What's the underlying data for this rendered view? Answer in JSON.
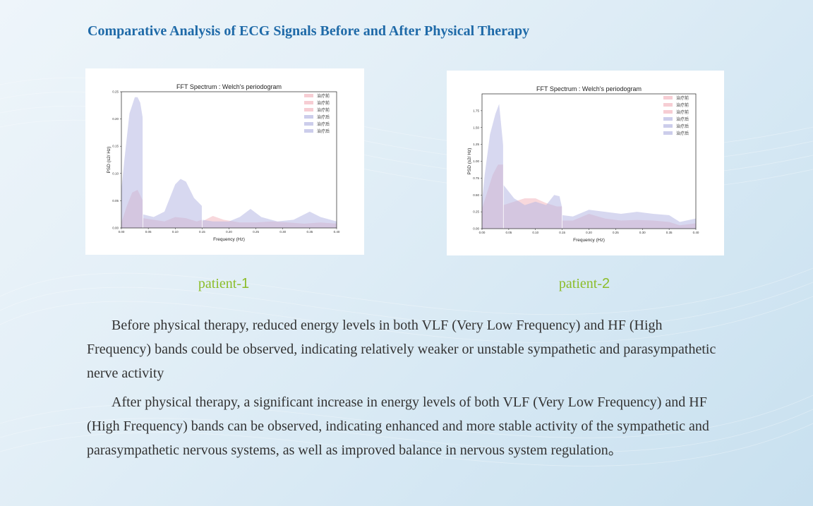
{
  "page_title": "Comparative Analysis of ECG Signals Before and After Physical Therapy",
  "colors": {
    "before": "#f2b8c0",
    "after": "#b7b8e3",
    "label_green": "#8cbd2a",
    "title_blue": "#1f6aa8"
  },
  "patients": [
    {
      "label_prefix": "patient-",
      "label_num": "1"
    },
    {
      "label_prefix": "patient-",
      "label_num": "2"
    }
  ],
  "paragraphs": [
    "Before physical therapy, reduced energy levels in both VLF (Very Low Frequency) and HF (High Frequency) bands could be observed, indicating relatively weaker or unstable sympathetic and parasympathetic nerve activity",
    "After physical therapy, a significant increase in energy levels of both VLF (Very Low Frequency) and HF (High Frequency) bands can be observed, indicating enhanced and more stable activity of the sympathetic and parasympathetic nervous systems, as well as improved balance in nervous system regulation。"
  ],
  "chart_data": [
    {
      "type": "area",
      "title": "FFT Spectrum : Welch's periodogram",
      "xlabel": "Frequency (Hz)",
      "ylabel": "PSD (s2/ Hz)",
      "xlim": [
        0,
        0.4
      ],
      "ylim": [
        0,
        0.25
      ],
      "xticks": [
        0,
        0.05,
        0.1,
        0.15,
        0.2,
        0.25,
        0.3,
        0.35,
        0.4
      ],
      "xtick_labels": [
        "0.00",
        "0.05",
        "0.10",
        "0.15",
        "0.20",
        "0.25",
        "0.30",
        "0.35",
        "0.40"
      ],
      "yticks": [
        0,
        0.05,
        0.1,
        0.15,
        0.2,
        0.25
      ],
      "ytick_labels": [
        "0.00",
        "0.05",
        "0.10",
        "0.15",
        "0.20",
        "0.25"
      ],
      "grid": false,
      "legend_position": "top-right",
      "legend": [
        "治疗前",
        "治疗前",
        "治疗前",
        "治疗后",
        "治疗后",
        "治疗后"
      ],
      "series": [
        {
          "name": "治疗前",
          "group": "before",
          "x": [
            0,
            0.01,
            0.02,
            0.03,
            0.04,
            0.04
          ],
          "y": [
            0.01,
            0.04,
            0.065,
            0.07,
            0.05,
            0
          ]
        },
        {
          "name": "治疗前",
          "group": "before",
          "x": [
            0.04,
            0.04,
            0.06,
            0.08,
            0.1,
            0.12,
            0.14,
            0.15,
            0.15
          ],
          "y": [
            0,
            0.018,
            0.015,
            0.012,
            0.02,
            0.018,
            0.012,
            0.015,
            0
          ]
        },
        {
          "name": "治疗前",
          "group": "before",
          "x": [
            0.15,
            0.15,
            0.17,
            0.19,
            0.22,
            0.25,
            0.28,
            0.31,
            0.34,
            0.37,
            0.4
          ],
          "y": [
            0,
            0.012,
            0.022,
            0.015,
            0.01,
            0.01,
            0.012,
            0.01,
            0.008,
            0.01,
            0.008
          ]
        },
        {
          "name": "治疗后",
          "group": "after",
          "x": [
            0,
            0.005,
            0.015,
            0.025,
            0.03,
            0.035,
            0.04,
            0.04
          ],
          "y": [
            0.07,
            0.12,
            0.21,
            0.24,
            0.24,
            0.23,
            0.2,
            0
          ]
        },
        {
          "name": "治疗后",
          "group": "after",
          "x": [
            0.04,
            0.04,
            0.06,
            0.08,
            0.1,
            0.11,
            0.12,
            0.135,
            0.15,
            0.15
          ],
          "y": [
            0,
            0.025,
            0.02,
            0.03,
            0.08,
            0.09,
            0.085,
            0.055,
            0.04,
            0
          ]
        },
        {
          "name": "治疗后",
          "group": "after",
          "x": [
            0.15,
            0.15,
            0.17,
            0.2,
            0.22,
            0.24,
            0.26,
            0.29,
            0.32,
            0.35,
            0.37,
            0.4
          ],
          "y": [
            0,
            0.015,
            0.012,
            0.012,
            0.02,
            0.035,
            0.02,
            0.012,
            0.015,
            0.03,
            0.02,
            0.012
          ]
        }
      ]
    },
    {
      "type": "area",
      "title": "FFT Spectrum : Welch's periodogram",
      "xlabel": "Frequency (Hz)",
      "ylabel": "PSD (s2/ Hz)",
      "xlim": [
        0,
        0.4
      ],
      "ylim": [
        0,
        2.0
      ],
      "xticks": [
        0,
        0.05,
        0.1,
        0.15,
        0.2,
        0.25,
        0.3,
        0.35,
        0.4
      ],
      "xtick_labels": [
        "0.00",
        "0.05",
        "0.10",
        "0.15",
        "0.20",
        "0.25",
        "0.30",
        "0.35",
        "0.40"
      ],
      "yticks": [
        0,
        0.25,
        0.5,
        0.75,
        1.0,
        1.25,
        1.5,
        1.75
      ],
      "ytick_labels": [
        "0.00",
        "0.25",
        "0.50",
        "0.75",
        "1.00",
        "1.25",
        "1.50",
        "1.75"
      ],
      "grid": false,
      "legend_position": "top-right",
      "legend": [
        "治疗前",
        "治疗前",
        "治疗前",
        "治疗后",
        "治疗后",
        "治疗后"
      ],
      "series": [
        {
          "name": "治疗前",
          "group": "before",
          "x": [
            0,
            0.01,
            0.02,
            0.03,
            0.04,
            0.04
          ],
          "y": [
            0.3,
            0.55,
            0.8,
            0.95,
            0.95,
            0
          ]
        },
        {
          "name": "治疗前",
          "group": "before",
          "x": [
            0.04,
            0.04,
            0.06,
            0.08,
            0.1,
            0.12,
            0.14,
            0.15,
            0.15
          ],
          "y": [
            0,
            0.35,
            0.4,
            0.45,
            0.45,
            0.38,
            0.33,
            0.33,
            0
          ]
        },
        {
          "name": "治疗前",
          "group": "before",
          "x": [
            0.15,
            0.15,
            0.17,
            0.2,
            0.23,
            0.26,
            0.29,
            0.32,
            0.35,
            0.37,
            0.4
          ],
          "y": [
            0,
            0.12,
            0.12,
            0.22,
            0.15,
            0.12,
            0.13,
            0.12,
            0.1,
            0.05,
            0.08
          ]
        },
        {
          "name": "治疗后",
          "group": "after",
          "x": [
            0,
            0.005,
            0.015,
            0.025,
            0.032,
            0.04,
            0.04
          ],
          "y": [
            0.4,
            0.8,
            1.4,
            1.7,
            1.85,
            1.2,
            0
          ]
        },
        {
          "name": "治疗后",
          "group": "after",
          "x": [
            0.04,
            0.04,
            0.06,
            0.08,
            0.1,
            0.12,
            0.135,
            0.145,
            0.15,
            0.15
          ],
          "y": [
            0,
            0.65,
            0.45,
            0.35,
            0.4,
            0.35,
            0.5,
            0.48,
            0.3,
            0
          ]
        },
        {
          "name": "治疗后",
          "group": "after",
          "x": [
            0.15,
            0.15,
            0.17,
            0.2,
            0.23,
            0.26,
            0.29,
            0.32,
            0.35,
            0.37,
            0.4
          ],
          "y": [
            0,
            0.2,
            0.18,
            0.28,
            0.25,
            0.22,
            0.25,
            0.22,
            0.2,
            0.1,
            0.15
          ]
        }
      ]
    }
  ]
}
